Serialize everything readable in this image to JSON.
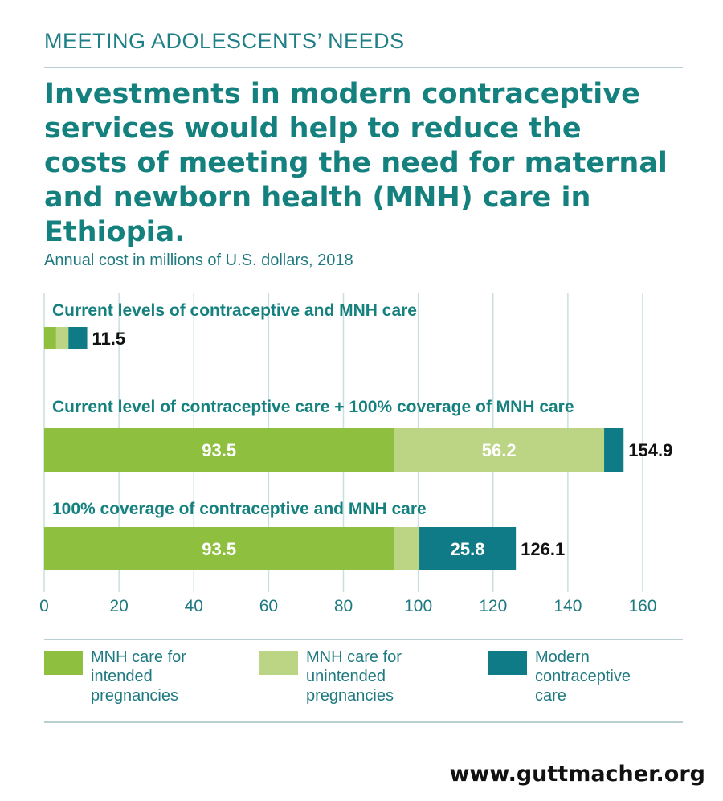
{
  "header": {
    "kicker": "MEETING ADOLESCENTS’ NEEDS",
    "headline": "Investments in modern contraceptive services would help to reduce the costs of meeting the need for maternal and newborn health (MNH) care in Ethiopia.",
    "subtitle": "Annual cost in millions of U.S. dollars, 2018"
  },
  "colors": {
    "mnh_intended": "#8ebf3f",
    "mnh_unintended": "#bcd585",
    "contraceptive": "#0f7b86",
    "teal_text": "#15817f",
    "grid": "#c9dfe1"
  },
  "chart_data": {
    "type": "bar",
    "orientation": "horizontal",
    "stacked": true,
    "title": "Annual cost in millions of U.S. dollars, 2018",
    "xlim": [
      0,
      160
    ],
    "xticks": [
      0,
      20,
      40,
      60,
      80,
      100,
      120,
      140,
      160
    ],
    "grid": true,
    "categories": [
      "Current levels of contraceptive and MNH care",
      "Current level of contraceptive care + 100% coverage of MNH care",
      "100% coverage of contraceptive and MNH care"
    ],
    "series": [
      {
        "name": "MNH care for intended pregnancies",
        "values": [
          3.2,
          93.5,
          93.5
        ],
        "labels": [
          "",
          "93.5",
          "93.5"
        ]
      },
      {
        "name": "MNH care for unintended pregnancies",
        "values": [
          3.3,
          56.2,
          6.8
        ],
        "labels": [
          "",
          "56.2",
          ""
        ]
      },
      {
        "name": "Modern contraceptive care",
        "values": [
          5.0,
          5.2,
          25.8
        ],
        "labels": [
          "",
          "",
          "25.8"
        ]
      }
    ],
    "totals": [
      "11.5",
      "154.9",
      "126.1"
    ],
    "legend_position": "bottom"
  },
  "legend": [
    {
      "label": "MNH care for intended pregnancies",
      "color": "#8ebf3f"
    },
    {
      "label": "MNH care for unintended pregnancies",
      "color": "#bcd585"
    },
    {
      "label": "Modern contraceptive care",
      "color": "#0f7b86"
    }
  ],
  "footer": {
    "source": "www.guttmacher.org"
  }
}
